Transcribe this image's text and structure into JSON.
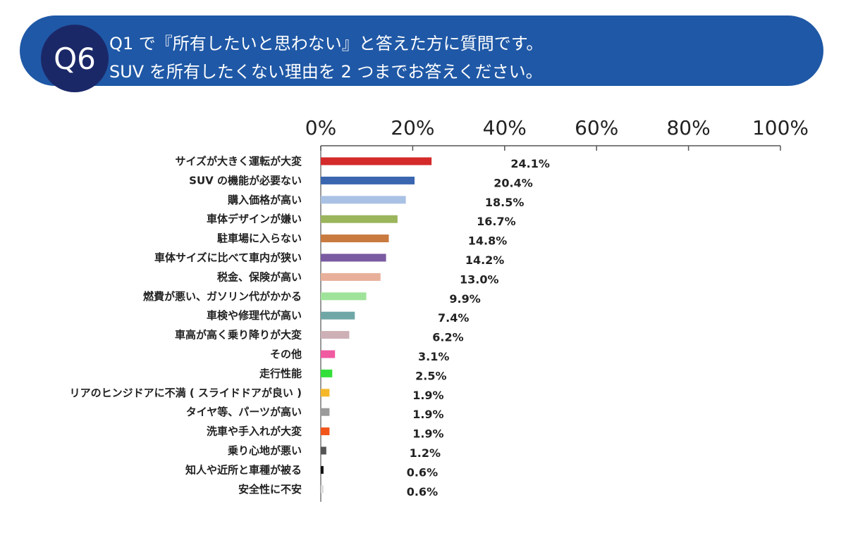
{
  "header": {
    "badge": "Q6",
    "line1": "Q1 で『所有したいと思わない』と答えた方に質問です。",
    "line2": "SUV を所有したくない理由を 2 つまでお答えください。",
    "banner_color": "#1f58a6",
    "badge_color": "#1b2868"
  },
  "chart_data": {
    "type": "bar",
    "orientation": "horizontal",
    "x_ticks": [
      "0%",
      "20%",
      "40%",
      "60%",
      "80%",
      "100%"
    ],
    "xlim": [
      0,
      100
    ],
    "categories": [
      "サイズが大きく運転が大変",
      "SUV の機能が必要ない",
      "購入価格が高い",
      "車体デザインが嫌い",
      "駐車場に入らない",
      "車体サイズに比べて車内が狭い",
      "税金、保険が高い",
      "燃費が悪い、ガソリン代がかかる",
      "車検や修理代が高い",
      "車高が高く乗り降りが大変",
      "その他",
      "走行性能",
      "リアのヒンジドアに不満 ( スライドドアが良い )",
      "タイヤ等、パーツが高い",
      "洗車や手入れが大変",
      "乗り心地が悪い",
      "知人や近所と車種が被る",
      "安全性に不安"
    ],
    "values": [
      24.1,
      20.4,
      18.5,
      16.7,
      14.8,
      14.2,
      13.0,
      9.9,
      7.4,
      6.2,
      3.1,
      2.5,
      1.9,
      1.9,
      1.9,
      1.2,
      0.6,
      0.6
    ],
    "value_labels": [
      "24.1%",
      "20.4%",
      "18.5%",
      "16.7%",
      "14.8%",
      "14.2%",
      "13.0%",
      "9.9%",
      "7.4%",
      "6.2%",
      "3.1%",
      "2.5%",
      "1.9%",
      "1.9%",
      "1.9%",
      "1.2%",
      "0.6%",
      "0.6%"
    ],
    "colors": [
      "#d42a2a",
      "#3a66b0",
      "#a9c1e3",
      "#9ab55a",
      "#c97a3f",
      "#7a5aa0",
      "#e8b09a",
      "#9fe39a",
      "#6fa7a6",
      "#cdb0b6",
      "#f05aa0",
      "#33e03a",
      "#f5b82a",
      "#9a9a9a",
      "#f2551a",
      "#555555",
      "#111111",
      "#dddddd"
    ],
    "grid": false
  }
}
